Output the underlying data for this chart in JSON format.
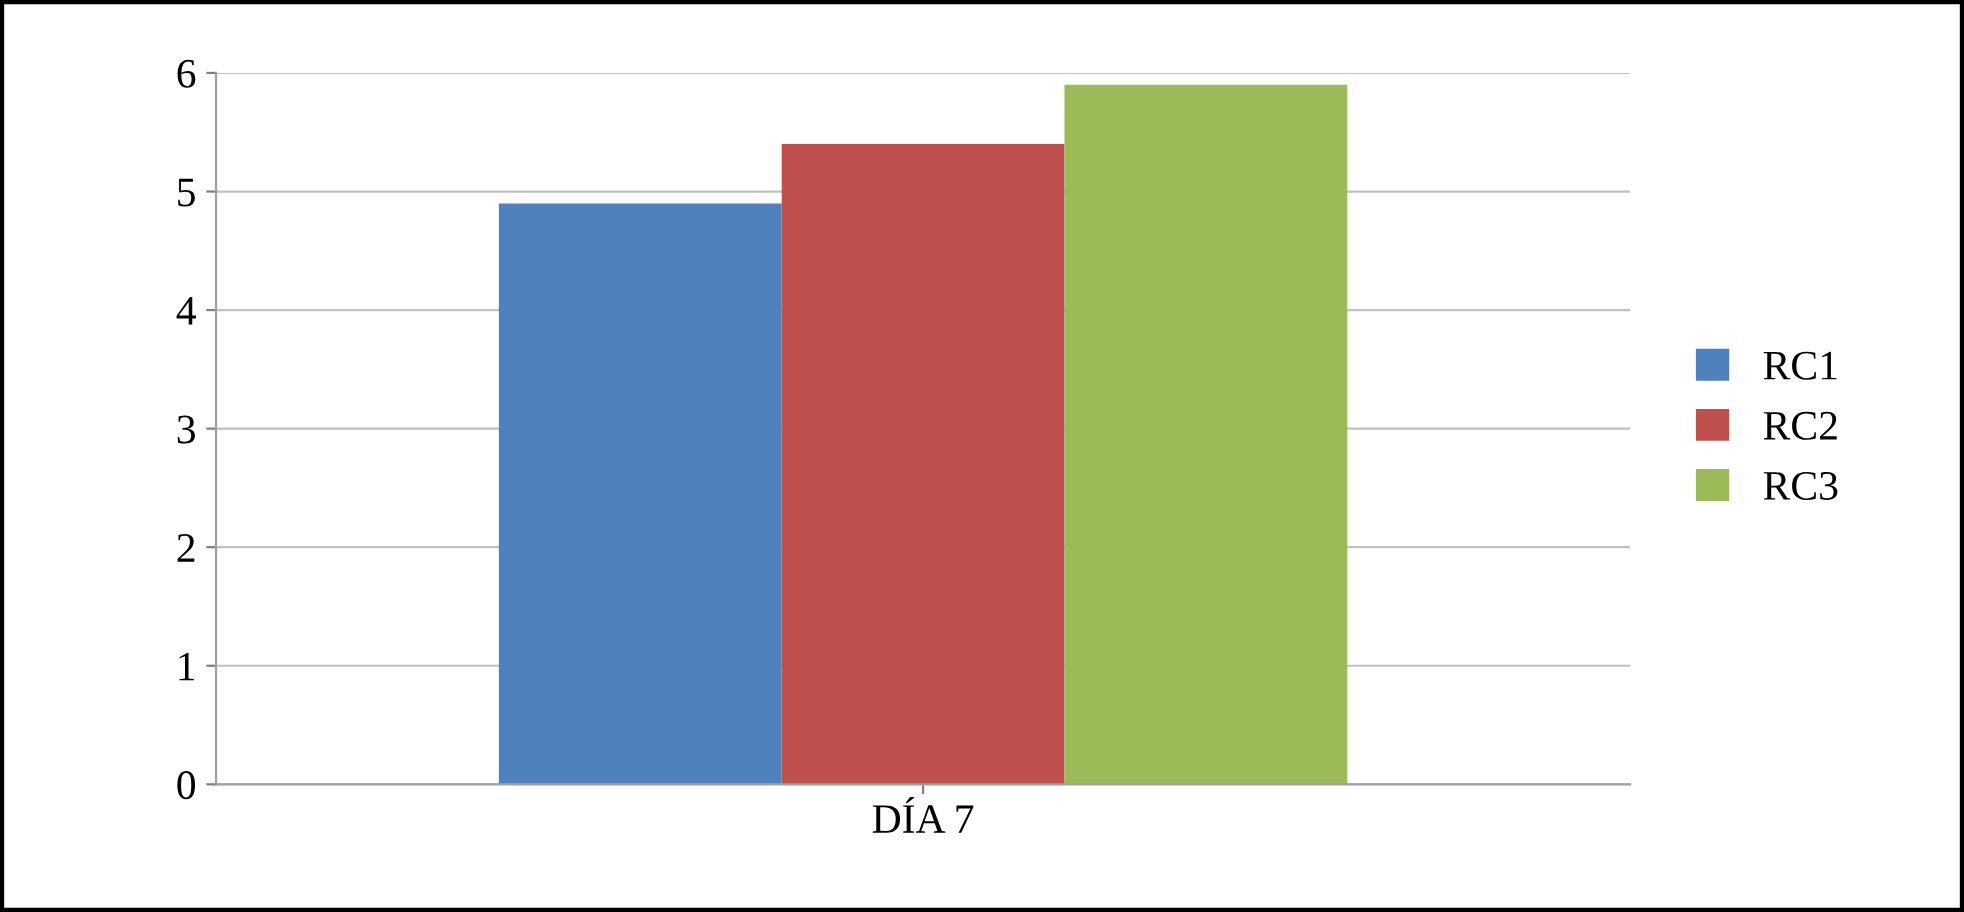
{
  "chart_data": {
    "type": "bar",
    "categories": [
      "DÍA 7"
    ],
    "series": [
      {
        "name": "RC1",
        "color": "#4f81bd",
        "values": [
          4.9
        ]
      },
      {
        "name": "RC2",
        "color": "#c0504d",
        "values": [
          5.4
        ]
      },
      {
        "name": "RC3",
        "color": "#9bbb59",
        "values": [
          5.9
        ]
      }
    ],
    "ylim": [
      0,
      6
    ],
    "yticks": [
      0,
      1,
      2,
      3,
      4,
      5,
      6
    ],
    "grid": "y",
    "legend": "right"
  }
}
